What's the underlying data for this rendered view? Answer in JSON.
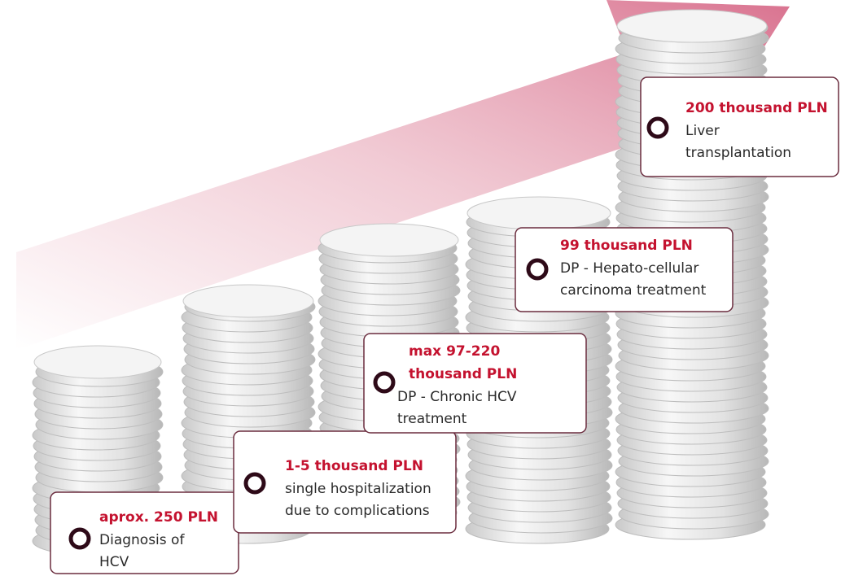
{
  "items": [
    {
      "cost": [
        "aprox. 250 PLN"
      ],
      "description": [
        "Diagnosis of",
        "HCV"
      ]
    },
    {
      "cost": [
        "1-5 thousand PLN"
      ],
      "description": [
        "single hospitalization",
        "due to complications"
      ]
    },
    {
      "cost": [
        "max 97-220",
        "thousand PLN"
      ],
      "description": [
        "DP - Chronic HCV",
        "treatment"
      ]
    },
    {
      "cost": [
        "99 thousand PLN"
      ],
      "description": [
        "DP - Hepato-cellular",
        "carcinoma treatment"
      ]
    },
    {
      "cost": [
        "200 thousand PLN"
      ],
      "description": [
        "Liver",
        "transplantation"
      ]
    }
  ]
}
